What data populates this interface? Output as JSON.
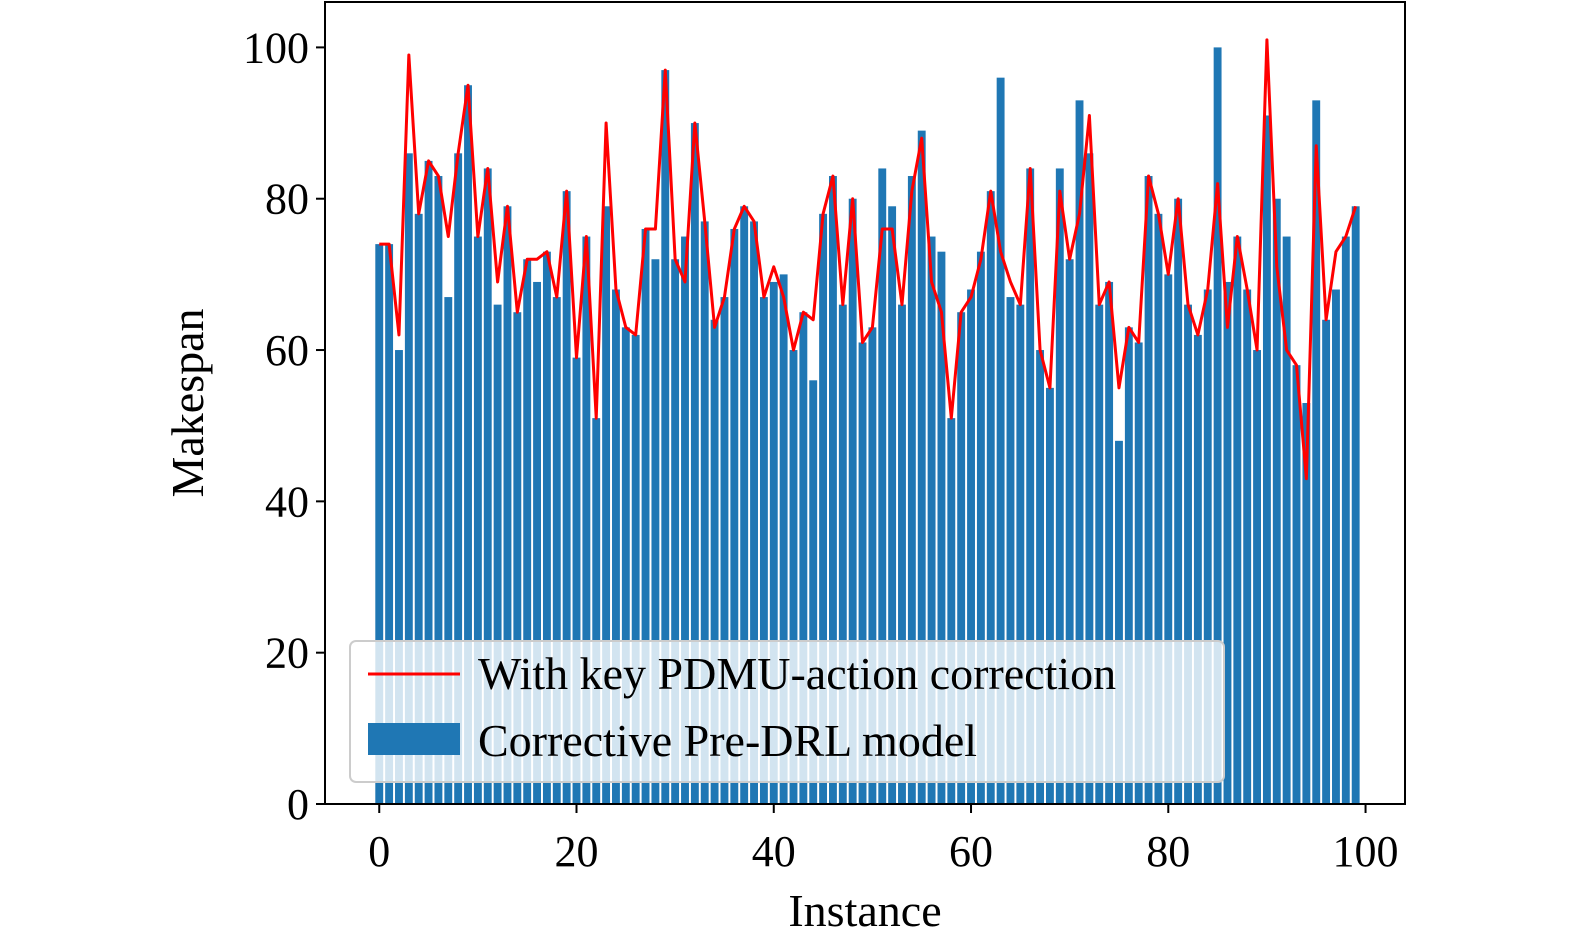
{
  "chart_data": {
    "type": "bar",
    "title": "",
    "xlabel": "Instance",
    "ylabel": "Makespan",
    "xlim": [
      -5.5,
      104
    ],
    "ylim": [
      0,
      106
    ],
    "xticks": [
      0,
      20,
      40,
      60,
      80,
      100
    ],
    "yticks": [
      0,
      20,
      40,
      60,
      80,
      100
    ],
    "grid": false,
    "legend_position": "lower-left",
    "x": [
      0,
      1,
      2,
      3,
      4,
      5,
      6,
      7,
      8,
      9,
      10,
      11,
      12,
      13,
      14,
      15,
      16,
      17,
      18,
      19,
      20,
      21,
      22,
      23,
      24,
      25,
      26,
      27,
      28,
      29,
      30,
      31,
      32,
      33,
      34,
      35,
      36,
      37,
      38,
      39,
      40,
      41,
      42,
      43,
      44,
      45,
      46,
      47,
      48,
      49,
      50,
      51,
      52,
      53,
      54,
      55,
      56,
      57,
      58,
      59,
      60,
      61,
      62,
      63,
      64,
      65,
      66,
      67,
      68,
      69,
      70,
      71,
      72,
      73,
      74,
      75,
      76,
      77,
      78,
      79,
      80,
      81,
      82,
      83,
      84,
      85,
      86,
      87,
      88,
      89,
      90,
      91,
      92,
      93,
      94,
      95,
      96,
      97,
      98,
      99
    ],
    "series": [
      {
        "name": "With key PDMU-action correction",
        "type": "line",
        "color": "#ff0000",
        "values": [
          74,
          74,
          62,
          99,
          78,
          85,
          83,
          75,
          86,
          95,
          75,
          84,
          69,
          79,
          65,
          72,
          72,
          73,
          67,
          81,
          59,
          75,
          51,
          90,
          68,
          63,
          62,
          76,
          76,
          97,
          72,
          69,
          90,
          77,
          63,
          67,
          76,
          79,
          77,
          67,
          71,
          67,
          60,
          65,
          64,
          78,
          83,
          66,
          80,
          61,
          63,
          76,
          76,
          66,
          81,
          88,
          69,
          65,
          51,
          65,
          67,
          72,
          81,
          73,
          69,
          66,
          84,
          60,
          55,
          81,
          72,
          78,
          91,
          66,
          69,
          55,
          63,
          61,
          83,
          78,
          70,
          80,
          66,
          62,
          68,
          82,
          63,
          75,
          68,
          60,
          101,
          71,
          60,
          58,
          43,
          87,
          64,
          73,
          75,
          79
        ]
      },
      {
        "name": "Corrective Pre-DRL model",
        "type": "bar",
        "color": "#1f77b4",
        "values": [
          74,
          74,
          60,
          86,
          78,
          85,
          83,
          67,
          86,
          95,
          75,
          84,
          66,
          79,
          65,
          72,
          69,
          73,
          67,
          81,
          59,
          75,
          51,
          79,
          68,
          63,
          62,
          76,
          72,
          97,
          72,
          75,
          90,
          77,
          64,
          67,
          76,
          79,
          77,
          67,
          69,
          70,
          60,
          65,
          56,
          78,
          83,
          66,
          80,
          61,
          63,
          84,
          79,
          66,
          83,
          89,
          75,
          73,
          51,
          65,
          68,
          73,
          81,
          96,
          67,
          66,
          84,
          60,
          55,
          84,
          72,
          93,
          86,
          66,
          69,
          48,
          63,
          61,
          83,
          78,
          70,
          80,
          66,
          62,
          68,
          100,
          69,
          75,
          68,
          60,
          91,
          80,
          75,
          58,
          53,
          93,
          64,
          68,
          75,
          79
        ]
      }
    ]
  }
}
